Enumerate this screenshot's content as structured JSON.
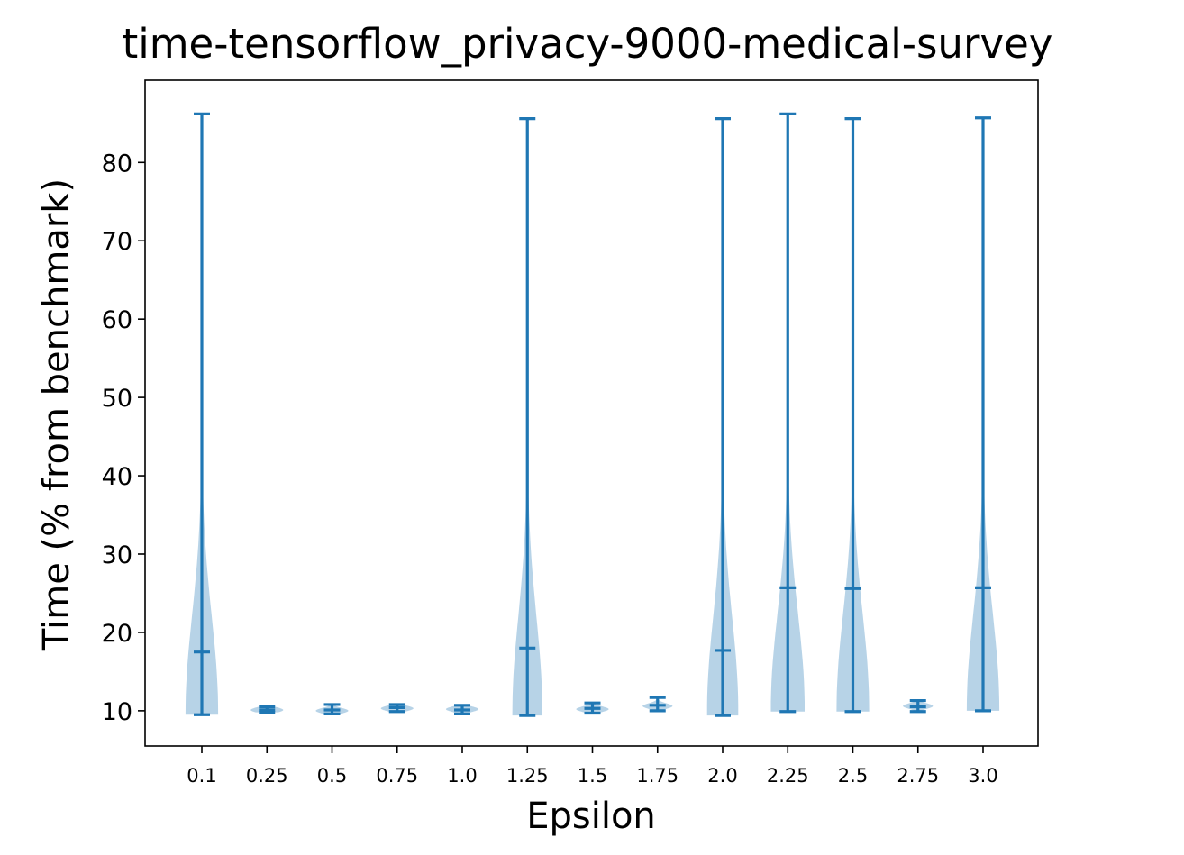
{
  "chart_data": {
    "type": "violin",
    "title": "time-tensorflow_privacy-9000-medical-survey",
    "xlabel": "Epsilon",
    "ylabel": "Time (% from benchmark)",
    "ylim": [
      5.5,
      90.5
    ],
    "yticks": [
      10,
      20,
      30,
      40,
      50,
      60,
      70,
      80
    ],
    "grid": false,
    "colors": {
      "line": "#1f77b4",
      "body": "#1f77b4",
      "body_opacity": 0.32
    },
    "categories": [
      "0.1",
      "0.25",
      "0.5",
      "0.75",
      "1.0",
      "1.25",
      "1.5",
      "1.75",
      "2.0",
      "2.25",
      "2.5",
      "2.75",
      "3.0"
    ],
    "violins": [
      {
        "min": 9.5,
        "max": 86.2,
        "median": 17.5,
        "max_width": 0.25,
        "peak": 9.8
      },
      {
        "min": 9.8,
        "max": 10.5,
        "median": 10.1,
        "max_width": 0.25,
        "peak": 10.1
      },
      {
        "min": 9.6,
        "max": 10.8,
        "median": 10.1,
        "max_width": 0.25,
        "peak": 10.0
      },
      {
        "min": 9.9,
        "max": 10.8,
        "median": 10.4,
        "max_width": 0.25,
        "peak": 10.3
      },
      {
        "min": 9.6,
        "max": 10.7,
        "median": 10.1,
        "max_width": 0.25,
        "peak": 10.2
      },
      {
        "min": 9.4,
        "max": 85.6,
        "median": 18.0,
        "max_width": 0.23,
        "peak": 9.8
      },
      {
        "min": 9.7,
        "max": 11.0,
        "median": 10.3,
        "max_width": 0.25,
        "peak": 10.2
      },
      {
        "min": 10.0,
        "max": 11.7,
        "median": 10.7,
        "max_width": 0.23,
        "peak": 10.6
      },
      {
        "min": 9.4,
        "max": 85.6,
        "median": 17.7,
        "max_width": 0.24,
        "peak": 9.8
      },
      {
        "min": 9.9,
        "max": 86.2,
        "median": 25.7,
        "max_width": 0.26,
        "peak": 10.2
      },
      {
        "min": 9.9,
        "max": 85.6,
        "median": 25.6,
        "max_width": 0.25,
        "peak": 10.2
      },
      {
        "min": 9.9,
        "max": 11.3,
        "median": 10.5,
        "max_width": 0.23,
        "peak": 10.6
      },
      {
        "min": 10.0,
        "max": 85.7,
        "median": 25.7,
        "max_width": 0.25,
        "peak": 10.2
      }
    ]
  }
}
